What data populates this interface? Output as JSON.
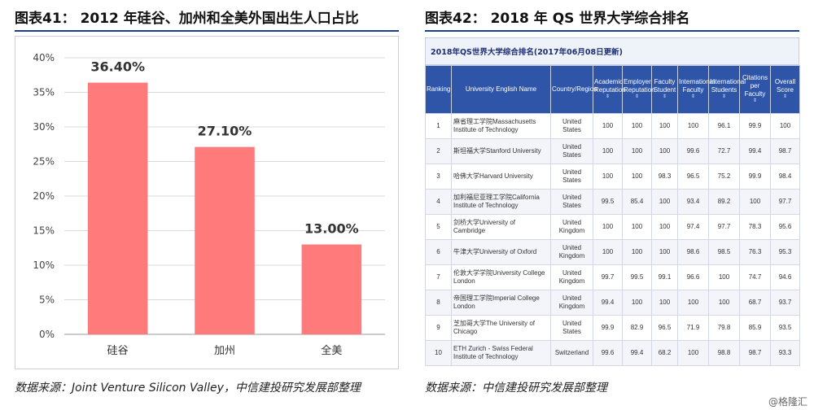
{
  "left_panel": {
    "title": "图表41：  2012 年硅谷、加州和全美外国出生人口占比",
    "source": "数据来源：Joint Venture Silicon Valley，中信建投研究发展部整理"
  },
  "chart_data": {
    "type": "bar",
    "categories": [
      "硅谷",
      "加州",
      "全美"
    ],
    "values": [
      36.4,
      27.1,
      13.0
    ],
    "value_labels": [
      "36.40%",
      "27.10%",
      "13.00%"
    ],
    "ytick_labels": [
      "0%",
      "5%",
      "10%",
      "15%",
      "20%",
      "25%",
      "30%",
      "35%",
      "40%"
    ],
    "ytick_values": [
      0,
      5,
      10,
      15,
      20,
      25,
      30,
      35,
      40
    ],
    "ylim": [
      0,
      40
    ],
    "grid": true,
    "bar_color": "#ff7b7b"
  },
  "right_panel": {
    "title": "图表42：  2018 年 QS 世界大学综合排名",
    "source": "数据来源：中信建投研究发展部整理",
    "table_title": "2018年QS世界大学综合排名(2017年06月08日更新)",
    "header_color": "#2f55a8",
    "columns": [
      "Ranking",
      "University English Name",
      "Country/Region",
      "Academic Reputation",
      "Employer Reputation",
      "Faculty Student",
      "International Faculty",
      "International Students",
      "Citations per Faculty",
      "Overall Score"
    ],
    "rows": [
      [
        "1",
        "麻省理工学院Massachusetts Institute of Technology",
        "United States",
        "100",
        "100",
        "100",
        "100",
        "96.1",
        "99.9",
        "100"
      ],
      [
        "2",
        "斯坦福大学Stanford University",
        "United States",
        "100",
        "100",
        "100",
        "99.6",
        "72.7",
        "99.4",
        "98.7"
      ],
      [
        "3",
        "哈佛大学Harvard University",
        "United States",
        "100",
        "100",
        "98.3",
        "96.5",
        "75.2",
        "99.9",
        "98.4"
      ],
      [
        "4",
        "加利福尼亚理工学院California Institute of Technology",
        "United States",
        "99.5",
        "85.4",
        "100",
        "93.4",
        "89.2",
        "100",
        "97.7"
      ],
      [
        "5",
        "剑桥大学University of Cambridge",
        "United Kingdom",
        "100",
        "100",
        "100",
        "97.4",
        "97.7",
        "78.3",
        "95.6"
      ],
      [
        "6",
        "牛津大学University of Oxford",
        "United Kingdom",
        "100",
        "100",
        "100",
        "98.6",
        "98.5",
        "76.3",
        "95.3"
      ],
      [
        "7",
        "伦敦大学学院University College London",
        "United Kingdom",
        "99.7",
        "99.5",
        "99.1",
        "96.6",
        "100",
        "74.7",
        "94.6"
      ],
      [
        "8",
        "帝国理工学院Imperial College London",
        "United Kingdom",
        "99.4",
        "100",
        "100",
        "100",
        "100",
        "68.7",
        "93.7"
      ],
      [
        "9",
        "芝加哥大学The University of Chicago",
        "United States",
        "99.9",
        "82.9",
        "96.5",
        "71.9",
        "79.8",
        "85.9",
        "93.5"
      ],
      [
        "10",
        "ETH Zurich - Swiss Federal Institute of Technology",
        "Switzerland",
        "99.6",
        "99.4",
        "68.2",
        "100",
        "98.8",
        "98.7",
        "93.3"
      ]
    ]
  },
  "watermark": "@格隆汇"
}
